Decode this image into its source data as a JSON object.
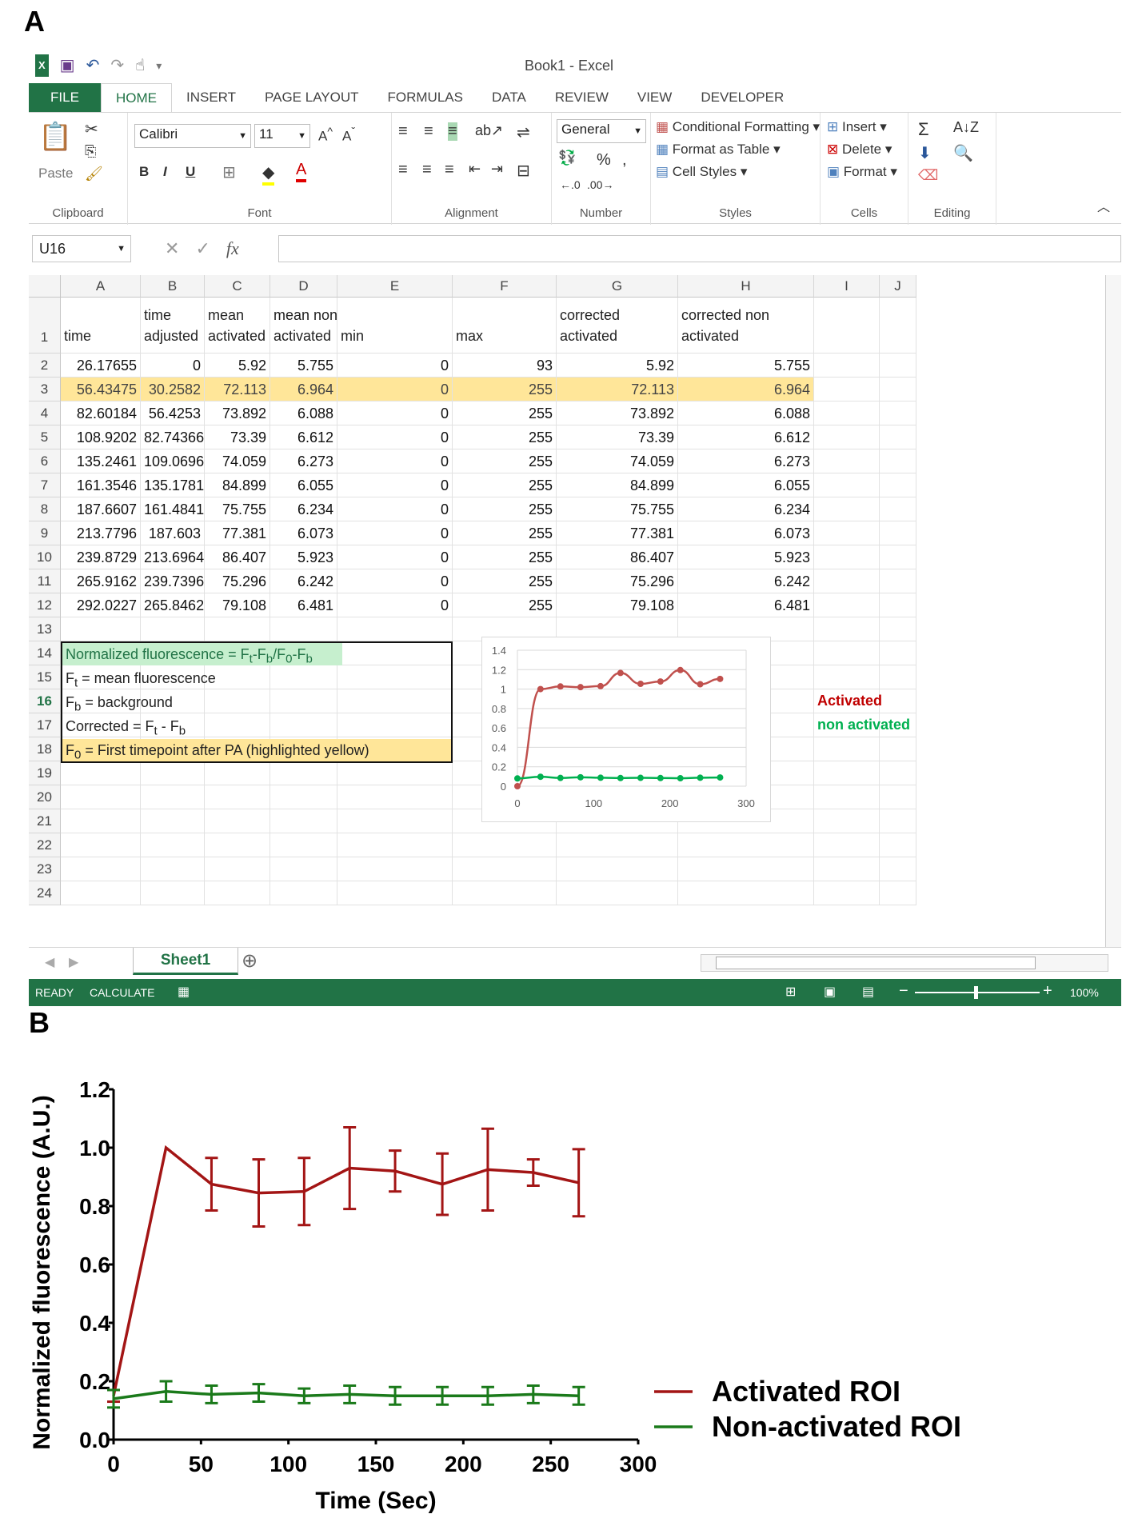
{
  "panel_labels": {
    "a": "A",
    "b": "B"
  },
  "excel": {
    "title": "Book1 - Excel",
    "tabs": [
      "FILE",
      "HOME",
      "INSERT",
      "PAGE LAYOUT",
      "FORMULAS",
      "DATA",
      "REVIEW",
      "VIEW",
      "DEVELOPER"
    ],
    "ribbon": {
      "clipboard": {
        "label": "Clipboard",
        "paste": "Paste"
      },
      "font": {
        "label": "Font",
        "name": "Calibri",
        "size": "11",
        "bold": "B",
        "italic": "I",
        "underline": "U"
      },
      "alignment": {
        "label": "Alignment"
      },
      "number": {
        "label": "Number",
        "format": "General",
        "percent": "%"
      },
      "styles": {
        "label": "Styles",
        "conditional": "Conditional Formatting",
        "format_table": "Format as Table",
        "cell_styles": "Cell Styles"
      },
      "cells": {
        "label": "Cells",
        "insert": "Insert",
        "delete": "Delete",
        "format": "Format"
      },
      "editing": {
        "label": "Editing",
        "sum": "Σ"
      }
    },
    "name_box": "U16",
    "fx": "fx",
    "columns": [
      "A",
      "B",
      "C",
      "D",
      "E",
      "F",
      "G",
      "H",
      "I",
      "J"
    ],
    "row_numbers": [
      "1",
      "2",
      "3",
      "4",
      "5",
      "6",
      "7",
      "8",
      "9",
      "10",
      "11",
      "12",
      "13",
      "14",
      "15",
      "16",
      "17",
      "18",
      "19",
      "20",
      "21",
      "22",
      "23",
      "24"
    ],
    "headers": {
      "A": [
        "",
        "time"
      ],
      "B": [
        "time",
        "adjusted"
      ],
      "C": [
        "mean",
        "activated"
      ],
      "D": [
        "mean non",
        "activated"
      ],
      "E": [
        "",
        "min"
      ],
      "F": [
        "",
        "max"
      ],
      "G": [
        "corrected",
        "activated"
      ],
      "H": [
        "corrected non",
        "activated"
      ]
    },
    "rows": [
      [
        "26.17655",
        "0",
        "5.92",
        "5.755",
        "0",
        "93",
        "5.92",
        "5.755"
      ],
      [
        "56.43475",
        "30.2582",
        "72.113",
        "6.964",
        "0",
        "255",
        "72.113",
        "6.964"
      ],
      [
        "82.60184",
        "56.4253",
        "73.892",
        "6.088",
        "0",
        "255",
        "73.892",
        "6.088"
      ],
      [
        "108.9202",
        "82.74366",
        "73.39",
        "6.612",
        "0",
        "255",
        "73.39",
        "6.612"
      ],
      [
        "135.2461",
        "109.0696",
        "74.059",
        "6.273",
        "0",
        "255",
        "74.059",
        "6.273"
      ],
      [
        "161.3546",
        "135.1781",
        "84.899",
        "6.055",
        "0",
        "255",
        "84.899",
        "6.055"
      ],
      [
        "187.6607",
        "161.4841",
        "75.755",
        "6.234",
        "0",
        "255",
        "75.755",
        "6.234"
      ],
      [
        "213.7796",
        "187.603",
        "77.381",
        "6.073",
        "0",
        "255",
        "77.381",
        "6.073"
      ],
      [
        "239.8729",
        "213.6964",
        "86.407",
        "5.923",
        "0",
        "255",
        "86.407",
        "5.923"
      ],
      [
        "265.9162",
        "239.7396",
        "75.296",
        "6.242",
        "0",
        "255",
        "75.296",
        "6.242"
      ],
      [
        "292.0227",
        "265.8462",
        "79.108",
        "6.481",
        "0",
        "255",
        "79.108",
        "6.481"
      ]
    ],
    "notes": [
      "Normalized fluorescence = Ft-Fb/F0-Fb",
      "Ft = mean fluorescence",
      "Fb = background",
      "Corrected = Ft - Fb",
      "F0 = First timepoint after PA (highlighted yellow)"
    ],
    "legend": {
      "activated": "Activated",
      "non_activated": "non activated"
    },
    "sheet_tab": "Sheet1",
    "status": {
      "ready": "READY",
      "calculate": "CALCULATE",
      "zoom": "100%"
    },
    "colors": {
      "accent": "#217346",
      "highlight": "#ffe699",
      "note_green": "#c6efce",
      "activated": "#c0504d",
      "non_activated": "#00b050"
    }
  },
  "chart_data": [
    {
      "type": "line",
      "x": [
        0,
        30.2582,
        56.4253,
        82.74366,
        109.0696,
        135.1781,
        161.4841,
        187.603,
        213.6964,
        239.7396,
        265.8462
      ],
      "series": [
        {
          "name": "Activated",
          "color": "#c0504d",
          "values": [
            0,
            1.0,
            1.027,
            1.02,
            1.03,
            1.166,
            1.054,
            1.078,
            1.196,
            1.05,
            1.105
          ]
        },
        {
          "name": "non activated",
          "color": "#00b050",
          "values": [
            0.08,
            0.097,
            0.085,
            0.092,
            0.087,
            0.084,
            0.086,
            0.084,
            0.082,
            0.087,
            0.09
          ]
        }
      ],
      "xlim": [
        0,
        300
      ],
      "ylim": [
        0,
        1.4
      ],
      "xticks": [
        "0",
        "100",
        "200",
        "300"
      ],
      "yticks": [
        "0",
        "0.2",
        "0.4",
        "0.6",
        "0.8",
        "1",
        "1.2",
        "1.4"
      ],
      "grid": true
    },
    {
      "type": "line",
      "x": [
        0,
        30,
        56,
        83,
        109,
        135,
        161,
        188,
        214,
        240,
        266
      ],
      "series": [
        {
          "name": "Activated ROI",
          "color": "#a31515",
          "values": [
            0.15,
            1.0,
            0.875,
            0.845,
            0.85,
            0.93,
            0.92,
            0.875,
            0.925,
            0.915,
            0.88
          ],
          "errors": [
            0.02,
            0.0,
            0.09,
            0.115,
            0.115,
            0.14,
            0.07,
            0.105,
            0.14,
            0.045,
            0.115
          ]
        },
        {
          "name": "Non-activated ROI",
          "color": "#1a7a1a",
          "values": [
            0.14,
            0.165,
            0.155,
            0.16,
            0.15,
            0.155,
            0.15,
            0.15,
            0.15,
            0.155,
            0.15
          ],
          "errors": [
            0.03,
            0.035,
            0.03,
            0.03,
            0.025,
            0.03,
            0.03,
            0.03,
            0.03,
            0.03,
            0.03
          ]
        }
      ],
      "xlabel": "Time (Sec)",
      "ylabel": "Normalized fluorescence (A.U.)",
      "xlim": [
        0,
        300
      ],
      "ylim": [
        0,
        1.2
      ],
      "xticks": [
        "0",
        "50",
        "100",
        "150",
        "200",
        "250",
        "300"
      ],
      "yticks": [
        "0.0",
        "0.2",
        "0.4",
        "0.6",
        "0.8",
        "1.0",
        "1.2"
      ],
      "legend_position": "bottom-right"
    }
  ]
}
